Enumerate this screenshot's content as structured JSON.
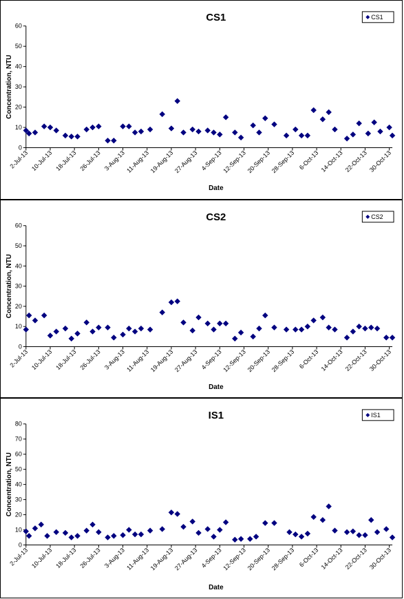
{
  "chart_data": [
    {
      "type": "scatter",
      "title": "CS1",
      "xlabel": "Date",
      "ylabel": "Concentration, NTU",
      "ylim": [
        0,
        60
      ],
      "yticks": [
        0,
        10,
        20,
        30,
        40,
        50,
        60
      ],
      "xlim": [
        "2013-07-02",
        "2013-10-31"
      ],
      "xtick_labels": [
        "2-Jul-13",
        "10-Jul-13",
        "18-Jul-13",
        "26-Jul-13",
        "3-Aug-13",
        "11-Aug-13",
        "19-Aug-13",
        "27-Aug-13",
        "4-Sep-13",
        "12-Sep-13",
        "20-Sep-13",
        "28-Sep-13",
        "6-Oct-13",
        "14-Oct-13",
        "22-Oct-13",
        "30-Oct-13"
      ],
      "xtick_dates": [
        "2013-07-02",
        "2013-07-10",
        "2013-07-18",
        "2013-07-26",
        "2013-08-03",
        "2013-08-11",
        "2013-08-19",
        "2013-08-27",
        "2013-09-04",
        "2013-09-12",
        "2013-09-20",
        "2013-09-28",
        "2013-10-06",
        "2013-10-14",
        "2013-10-22",
        "2013-10-30"
      ],
      "legend_position": "top-right",
      "grid": false,
      "series": [
        {
          "name": "CS1",
          "color": "#000080",
          "marker": "diamond",
          "points": [
            {
              "x": "2013-07-02",
              "y": 8.5
            },
            {
              "x": "2013-07-03",
              "y": 7
            },
            {
              "x": "2013-07-05",
              "y": 7.5
            },
            {
              "x": "2013-07-08",
              "y": 10.5
            },
            {
              "x": "2013-07-10",
              "y": 10
            },
            {
              "x": "2013-07-12",
              "y": 8.5
            },
            {
              "x": "2013-07-15",
              "y": 6
            },
            {
              "x": "2013-07-17",
              "y": 5.5
            },
            {
              "x": "2013-07-19",
              "y": 5.5
            },
            {
              "x": "2013-07-22",
              "y": 9
            },
            {
              "x": "2013-07-24",
              "y": 10
            },
            {
              "x": "2013-07-26",
              "y": 10.5
            },
            {
              "x": "2013-07-29",
              "y": 3.5
            },
            {
              "x": "2013-07-31",
              "y": 3.5
            },
            {
              "x": "2013-08-03",
              "y": 10.5
            },
            {
              "x": "2013-08-05",
              "y": 10.5
            },
            {
              "x": "2013-08-07",
              "y": 7.5
            },
            {
              "x": "2013-08-09",
              "y": 8
            },
            {
              "x": "2013-08-12",
              "y": 9
            },
            {
              "x": "2013-08-16",
              "y": 16.5
            },
            {
              "x": "2013-08-19",
              "y": 9.5
            },
            {
              "x": "2013-08-21",
              "y": 23
            },
            {
              "x": "2013-08-23",
              "y": 7.5
            },
            {
              "x": "2013-08-26",
              "y": 9
            },
            {
              "x": "2013-08-28",
              "y": 8
            },
            {
              "x": "2013-08-31",
              "y": 8.5
            },
            {
              "x": "2013-09-02",
              "y": 7.5
            },
            {
              "x": "2013-09-04",
              "y": 6.5
            },
            {
              "x": "2013-09-06",
              "y": 15
            },
            {
              "x": "2013-09-09",
              "y": 7.5
            },
            {
              "x": "2013-09-11",
              "y": 5
            },
            {
              "x": "2013-09-15",
              "y": 11
            },
            {
              "x": "2013-09-17",
              "y": 7.5
            },
            {
              "x": "2013-09-19",
              "y": 14.5
            },
            {
              "x": "2013-09-22",
              "y": 11.5
            },
            {
              "x": "2013-09-26",
              "y": 6
            },
            {
              "x": "2013-09-29",
              "y": 9
            },
            {
              "x": "2013-10-01",
              "y": 6
            },
            {
              "x": "2013-10-03",
              "y": 6
            },
            {
              "x": "2013-10-05",
              "y": 18.5
            },
            {
              "x": "2013-10-08",
              "y": 14
            },
            {
              "x": "2013-10-10",
              "y": 17.5
            },
            {
              "x": "2013-10-12",
              "y": 9
            },
            {
              "x": "2013-10-16",
              "y": 4.5
            },
            {
              "x": "2013-10-18",
              "y": 6.5
            },
            {
              "x": "2013-10-20",
              "y": 12
            },
            {
              "x": "2013-10-23",
              "y": 7
            },
            {
              "x": "2013-10-25",
              "y": 12.5
            },
            {
              "x": "2013-10-27",
              "y": 8
            },
            {
              "x": "2013-10-30",
              "y": 10
            },
            {
              "x": "2013-10-31",
              "y": 6
            }
          ]
        }
      ]
    },
    {
      "type": "scatter",
      "title": "CS2",
      "xlabel": "Date",
      "ylabel": "Concentration, NTU",
      "ylim": [
        0,
        60
      ],
      "yticks": [
        0,
        10,
        20,
        30,
        40,
        50,
        60
      ],
      "xlim": [
        "2013-07-02",
        "2013-10-31"
      ],
      "xtick_labels": [
        "2-Jul-13",
        "10-Jul-13",
        "18-Jul-13",
        "26-Jul-13",
        "3-Aug-13",
        "11-Aug-13",
        "19-Aug-13",
        "27-Aug-13",
        "4-Sep-13",
        "12-Sep-13",
        "20-Sep-13",
        "28-Sep-13",
        "6-Oct-13",
        "14-Oct-13",
        "22-Oct-13",
        "30-Oct-13"
      ],
      "xtick_dates": [
        "2013-07-02",
        "2013-07-10",
        "2013-07-18",
        "2013-07-26",
        "2013-08-03",
        "2013-08-11",
        "2013-08-19",
        "2013-08-27",
        "2013-09-04",
        "2013-09-12",
        "2013-09-20",
        "2013-09-28",
        "2013-10-06",
        "2013-10-14",
        "2013-10-22",
        "2013-10-30"
      ],
      "legend_position": "top-right",
      "grid": false,
      "series": [
        {
          "name": "CS2",
          "color": "#000080",
          "marker": "diamond",
          "points": [
            {
              "x": "2013-07-02",
              "y": 8.5
            },
            {
              "x": "2013-07-03",
              "y": 15.5
            },
            {
              "x": "2013-07-05",
              "y": 13
            },
            {
              "x": "2013-07-08",
              "y": 15.5
            },
            {
              "x": "2013-07-10",
              "y": 5.5
            },
            {
              "x": "2013-07-12",
              "y": 7.5
            },
            {
              "x": "2013-07-15",
              "y": 9
            },
            {
              "x": "2013-07-17",
              "y": 4
            },
            {
              "x": "2013-07-19",
              "y": 6.5
            },
            {
              "x": "2013-07-22",
              "y": 12
            },
            {
              "x": "2013-07-24",
              "y": 7.5
            },
            {
              "x": "2013-07-26",
              "y": 9.5
            },
            {
              "x": "2013-07-29",
              "y": 9.5
            },
            {
              "x": "2013-07-31",
              "y": 4.5
            },
            {
              "x": "2013-08-03",
              "y": 6
            },
            {
              "x": "2013-08-05",
              "y": 9
            },
            {
              "x": "2013-08-07",
              "y": 7.5
            },
            {
              "x": "2013-08-09",
              "y": 9
            },
            {
              "x": "2013-08-12",
              "y": 8.5
            },
            {
              "x": "2013-08-16",
              "y": 17
            },
            {
              "x": "2013-08-19",
              "y": 22
            },
            {
              "x": "2013-08-21",
              "y": 22.5
            },
            {
              "x": "2013-08-23",
              "y": 12
            },
            {
              "x": "2013-08-26",
              "y": 8
            },
            {
              "x": "2013-08-28",
              "y": 14.5
            },
            {
              "x": "2013-08-31",
              "y": 11.5
            },
            {
              "x": "2013-09-02",
              "y": 8.5
            },
            {
              "x": "2013-09-04",
              "y": 11.5
            },
            {
              "x": "2013-09-06",
              "y": 11.5
            },
            {
              "x": "2013-09-09",
              "y": 4
            },
            {
              "x": "2013-09-11",
              "y": 7
            },
            {
              "x": "2013-09-15",
              "y": 5
            },
            {
              "x": "2013-09-17",
              "y": 9
            },
            {
              "x": "2013-09-19",
              "y": 15.5
            },
            {
              "x": "2013-09-22",
              "y": 9.5
            },
            {
              "x": "2013-09-26",
              "y": 8.5
            },
            {
              "x": "2013-09-29",
              "y": 8.5
            },
            {
              "x": "2013-10-01",
              "y": 8.5
            },
            {
              "x": "2013-10-03",
              "y": 10
            },
            {
              "x": "2013-10-05",
              "y": 13
            },
            {
              "x": "2013-10-08",
              "y": 14.5
            },
            {
              "x": "2013-10-10",
              "y": 9.5
            },
            {
              "x": "2013-10-12",
              "y": 8.5
            },
            {
              "x": "2013-10-16",
              "y": 4.5
            },
            {
              "x": "2013-10-18",
              "y": 7.5
            },
            {
              "x": "2013-10-20",
              "y": 10
            },
            {
              "x": "2013-10-22",
              "y": 9
            },
            {
              "x": "2013-10-24",
              "y": 9.5
            },
            {
              "x": "2013-10-26",
              "y": 9
            },
            {
              "x": "2013-10-29",
              "y": 4.5
            },
            {
              "x": "2013-10-31",
              "y": 4.5
            }
          ]
        }
      ]
    },
    {
      "type": "scatter",
      "title": "IS1",
      "xlabel": "Date",
      "ylabel": "Concentration, NTU",
      "ylim": [
        0,
        80
      ],
      "yticks": [
        0,
        10,
        20,
        30,
        40,
        50,
        60,
        70,
        80
      ],
      "xlim": [
        "2013-07-02",
        "2013-10-31"
      ],
      "xtick_labels": [
        "2-Jul-13",
        "10-Jul-13",
        "18-Jul-13",
        "26-Jul-13",
        "3-Aug-13",
        "11-Aug-13",
        "19-Aug-13",
        "27-Aug-13",
        "4-Sep-13",
        "12-Sep-13",
        "20-Sep-13",
        "28-Sep-13",
        "6-Oct-13",
        "14-Oct-13",
        "22-Oct-13",
        "30-Oct-13"
      ],
      "xtick_dates": [
        "2013-07-02",
        "2013-07-10",
        "2013-07-18",
        "2013-07-26",
        "2013-08-03",
        "2013-08-11",
        "2013-08-19",
        "2013-08-27",
        "2013-09-04",
        "2013-09-12",
        "2013-09-20",
        "2013-09-28",
        "2013-10-06",
        "2013-10-14",
        "2013-10-22",
        "2013-10-30"
      ],
      "legend_position": "top-right",
      "grid": false,
      "series": [
        {
          "name": "IS1",
          "color": "#000080",
          "marker": "diamond",
          "points": [
            {
              "x": "2013-07-02",
              "y": 9
            },
            {
              "x": "2013-07-03",
              "y": 6
            },
            {
              "x": "2013-07-05",
              "y": 11
            },
            {
              "x": "2013-07-07",
              "y": 13.5
            },
            {
              "x": "2013-07-09",
              "y": 6
            },
            {
              "x": "2013-07-12",
              "y": 8.5
            },
            {
              "x": "2013-07-15",
              "y": 8
            },
            {
              "x": "2013-07-17",
              "y": 5
            },
            {
              "x": "2013-07-19",
              "y": 6
            },
            {
              "x": "2013-07-22",
              "y": 9.5
            },
            {
              "x": "2013-07-24",
              "y": 13.5
            },
            {
              "x": "2013-07-26",
              "y": 8.5
            },
            {
              "x": "2013-07-29",
              "y": 5
            },
            {
              "x": "2013-07-31",
              "y": 6
            },
            {
              "x": "2013-08-03",
              "y": 6.5
            },
            {
              "x": "2013-08-05",
              "y": 10
            },
            {
              "x": "2013-08-07",
              "y": 7
            },
            {
              "x": "2013-08-09",
              "y": 7
            },
            {
              "x": "2013-08-12",
              "y": 9.5
            },
            {
              "x": "2013-08-16",
              "y": 10.5
            },
            {
              "x": "2013-08-19",
              "y": 21.5
            },
            {
              "x": "2013-08-21",
              "y": 20.5
            },
            {
              "x": "2013-08-23",
              "y": 12
            },
            {
              "x": "2013-08-26",
              "y": 15.5
            },
            {
              "x": "2013-08-28",
              "y": 8
            },
            {
              "x": "2013-08-31",
              "y": 10.5
            },
            {
              "x": "2013-09-02",
              "y": 5.5
            },
            {
              "x": "2013-09-04",
              "y": 10
            },
            {
              "x": "2013-09-06",
              "y": 15
            },
            {
              "x": "2013-09-09",
              "y": 3.5
            },
            {
              "x": "2013-09-11",
              "y": 4
            },
            {
              "x": "2013-09-14",
              "y": 4
            },
            {
              "x": "2013-09-16",
              "y": 5.5
            },
            {
              "x": "2013-09-19",
              "y": 14.5
            },
            {
              "x": "2013-09-22",
              "y": 14.5
            },
            {
              "x": "2013-09-27",
              "y": 8.5
            },
            {
              "x": "2013-09-29",
              "y": 7
            },
            {
              "x": "2013-10-01",
              "y": 5.5
            },
            {
              "x": "2013-10-03",
              "y": 7.5
            },
            {
              "x": "2013-10-05",
              "y": 18.5
            },
            {
              "x": "2013-10-08",
              "y": 16.5
            },
            {
              "x": "2013-10-10",
              "y": 25.5
            },
            {
              "x": "2013-10-12",
              "y": 9.5
            },
            {
              "x": "2013-10-16",
              "y": 8.5
            },
            {
              "x": "2013-10-18",
              "y": 9
            },
            {
              "x": "2013-10-20",
              "y": 6.5
            },
            {
              "x": "2013-10-22",
              "y": 6.5
            },
            {
              "x": "2013-10-24",
              "y": 16.5
            },
            {
              "x": "2013-10-26",
              "y": 8.5
            },
            {
              "x": "2013-10-29",
              "y": 10.5
            },
            {
              "x": "2013-10-31",
              "y": 5
            }
          ]
        }
      ]
    }
  ]
}
